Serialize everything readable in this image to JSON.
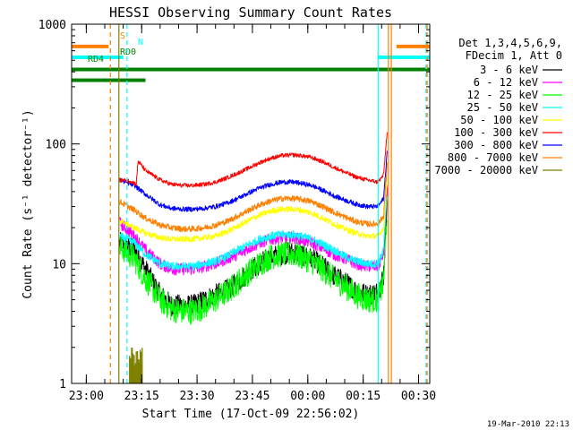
{
  "chart_data": {
    "type": "line",
    "title": "HESSI Observing Summary Count Rates",
    "xlabel": "Start Time (17-Oct-09 22:56:02)",
    "ylabel": "Count Rate (s⁻¹ detector⁻¹)",
    "x_unit": "minutes since 22:56:02",
    "xlim": [
      0,
      97
    ],
    "ylim": [
      1,
      1000
    ],
    "yscale": "log",
    "x_ticks": [
      {
        "t": 3.97,
        "label": "23:00"
      },
      {
        "t": 18.97,
        "label": "23:15"
      },
      {
        "t": 33.97,
        "label": "23:30"
      },
      {
        "t": 48.97,
        "label": "23:45"
      },
      {
        "t": 63.97,
        "label": "00:00"
      },
      {
        "t": 78.97,
        "label": "00:15"
      },
      {
        "t": 93.97,
        "label": "00:30"
      }
    ],
    "y_ticks": [
      {
        "v": 1,
        "label": "1"
      },
      {
        "v": 10,
        "label": "10"
      },
      {
        "v": 100,
        "label": "100"
      },
      {
        "v": 1000,
        "label": "1000"
      }
    ],
    "grid": false,
    "legend": {
      "position": "right",
      "header": [
        "Det 1,3,4,5,6,9,",
        "FDecim 1, Att 0"
      ],
      "items": [
        {
          "label": "3 - 6 keV",
          "color": "#000000"
        },
        {
          "label": "6 - 12 keV",
          "color": "#ff00ff"
        },
        {
          "label": "12 - 25 keV",
          "color": "#00ff00"
        },
        {
          "label": "25 - 50 keV",
          "color": "#00ffff"
        },
        {
          "label": "50 - 100 keV",
          "color": "#ffff00"
        },
        {
          "label": "100 - 300 keV",
          "color": "#ff0000"
        },
        {
          "label": "300 - 800 keV",
          "color": "#0000ff"
        },
        {
          "label": "800 - 7000 keV",
          "color": "#ff8000"
        },
        {
          "label": "7000 - 20000 keV",
          "color": "#808000"
        }
      ]
    },
    "series": [
      {
        "name": "3 - 6 keV",
        "color": "#000000",
        "noise": 0.18,
        "y": [
          [
            13,
            15
          ],
          [
            17,
            13
          ],
          [
            20,
            9
          ],
          [
            24,
            5.5
          ],
          [
            27,
            4.5
          ],
          [
            30,
            4.5
          ],
          [
            33,
            4.5
          ],
          [
            36,
            5
          ],
          [
            39,
            5.5
          ],
          [
            42,
            6
          ],
          [
            45,
            7
          ],
          [
            48,
            8.5
          ],
          [
            51,
            10
          ],
          [
            54,
            11.5
          ],
          [
            57,
            12
          ],
          [
            60,
            12.5
          ],
          [
            62,
            12
          ],
          [
            65,
            11
          ],
          [
            68,
            9.5
          ],
          [
            71,
            8
          ],
          [
            74,
            7
          ],
          [
            77,
            6
          ],
          [
            80,
            5.5
          ],
          [
            83,
            5.8
          ],
          [
            84.5,
            8
          ],
          [
            85.5,
            40
          ]
        ]
      },
      {
        "name": "6 - 12 keV",
        "color": "#ff00ff",
        "noise": 0.1,
        "y": [
          [
            13,
            22
          ],
          [
            17,
            17
          ],
          [
            20,
            13
          ],
          [
            24,
            10
          ],
          [
            27,
            9
          ],
          [
            30,
            9
          ],
          [
            33,
            9
          ],
          [
            36,
            9.5
          ],
          [
            39,
            10
          ],
          [
            42,
            11
          ],
          [
            45,
            12
          ],
          [
            48,
            13.5
          ],
          [
            51,
            15
          ],
          [
            54,
            16
          ],
          [
            57,
            16.5
          ],
          [
            60,
            16.5
          ],
          [
            62,
            16
          ],
          [
            65,
            15
          ],
          [
            68,
            13.5
          ],
          [
            71,
            12
          ],
          [
            74,
            11
          ],
          [
            77,
            10
          ],
          [
            80,
            9.5
          ],
          [
            83,
            9.5
          ],
          [
            84.5,
            12
          ],
          [
            85.5,
            45
          ]
        ]
      },
      {
        "name": "12 - 25 keV",
        "color": "#00ff00",
        "noise": 0.22,
        "y": [
          [
            13,
            14
          ],
          [
            17,
            11
          ],
          [
            20,
            7.5
          ],
          [
            24,
            5
          ],
          [
            27,
            4.2
          ],
          [
            30,
            4
          ],
          [
            33,
            4
          ],
          [
            36,
            4.4
          ],
          [
            39,
            5
          ],
          [
            42,
            5.8
          ],
          [
            45,
            7
          ],
          [
            48,
            8.5
          ],
          [
            51,
            10
          ],
          [
            54,
            11.5
          ],
          [
            57,
            12
          ],
          [
            60,
            12
          ],
          [
            62,
            11.5
          ],
          [
            65,
            10.5
          ],
          [
            68,
            9
          ],
          [
            71,
            7.5
          ],
          [
            74,
            6.5
          ],
          [
            77,
            5.5
          ],
          [
            80,
            5
          ],
          [
            83,
            5
          ],
          [
            84.5,
            7
          ],
          [
            85.5,
            30
          ]
        ]
      },
      {
        "name": "25 - 50 keV",
        "color": "#00ffff",
        "noise": 0.07,
        "y": [
          [
            13,
            17
          ],
          [
            17,
            15
          ],
          [
            20,
            12
          ],
          [
            24,
            10
          ],
          [
            27,
            9.5
          ],
          [
            30,
            9.5
          ],
          [
            33,
            9.5
          ],
          [
            36,
            10
          ],
          [
            39,
            10.5
          ],
          [
            42,
            11.5
          ],
          [
            45,
            13
          ],
          [
            48,
            14.5
          ],
          [
            51,
            16
          ],
          [
            54,
            17
          ],
          [
            57,
            17.5
          ],
          [
            60,
            17.5
          ],
          [
            62,
            17
          ],
          [
            65,
            16
          ],
          [
            68,
            14.5
          ],
          [
            71,
            13
          ],
          [
            74,
            11.5
          ],
          [
            77,
            10.5
          ],
          [
            80,
            10
          ],
          [
            83,
            10
          ],
          [
            84.5,
            13
          ],
          [
            85.5,
            40
          ]
        ]
      },
      {
        "name": "50 - 100 keV",
        "color": "#ffff00",
        "noise": 0.05,
        "y": [
          [
            13,
            23
          ],
          [
            17,
            20
          ],
          [
            20,
            18
          ],
          [
            24,
            16.5
          ],
          [
            27,
            16
          ],
          [
            30,
            16
          ],
          [
            33,
            16
          ],
          [
            36,
            16.5
          ],
          [
            39,
            17
          ],
          [
            42,
            18.5
          ],
          [
            45,
            20.5
          ],
          [
            48,
            23
          ],
          [
            51,
            25.5
          ],
          [
            54,
            27.5
          ],
          [
            57,
            28.5
          ],
          [
            60,
            28.5
          ],
          [
            62,
            28
          ],
          [
            65,
            26.5
          ],
          [
            68,
            24
          ],
          [
            71,
            21.5
          ],
          [
            74,
            19.5
          ],
          [
            77,
            18
          ],
          [
            80,
            17
          ],
          [
            83,
            17
          ],
          [
            84.5,
            20
          ],
          [
            85.5,
            55
          ]
        ]
      },
      {
        "name": "100 - 300 keV",
        "color": "#ff0000",
        "noise": 0.035,
        "y": [
          [
            13,
            50
          ],
          [
            16,
            49
          ],
          [
            17.5,
            46
          ],
          [
            18,
            72
          ],
          [
            20,
            60
          ],
          [
            24,
            50
          ],
          [
            27,
            46
          ],
          [
            30,
            45
          ],
          [
            33,
            45
          ],
          [
            36,
            46
          ],
          [
            39,
            48
          ],
          [
            42,
            52
          ],
          [
            45,
            57
          ],
          [
            48,
            63
          ],
          [
            51,
            70
          ],
          [
            54,
            76
          ],
          [
            57,
            80
          ],
          [
            60,
            81
          ],
          [
            62,
            80
          ],
          [
            65,
            77
          ],
          [
            68,
            71
          ],
          [
            71,
            64
          ],
          [
            74,
            58
          ],
          [
            77,
            53
          ],
          [
            80,
            50
          ],
          [
            83,
            48
          ],
          [
            84.5,
            55
          ],
          [
            85.5,
            130
          ]
        ]
      },
      {
        "name": "300 - 800 keV",
        "color": "#0000ff",
        "noise": 0.04,
        "y": [
          [
            13,
            50
          ],
          [
            17,
            45
          ],
          [
            20,
            38
          ],
          [
            24,
            31
          ],
          [
            27,
            29
          ],
          [
            30,
            28.5
          ],
          [
            33,
            28.5
          ],
          [
            36,
            29
          ],
          [
            39,
            30
          ],
          [
            42,
            32
          ],
          [
            45,
            35
          ],
          [
            48,
            39
          ],
          [
            51,
            43
          ],
          [
            54,
            46
          ],
          [
            57,
            48
          ],
          [
            60,
            48
          ],
          [
            62,
            47
          ],
          [
            65,
            45
          ],
          [
            68,
            41
          ],
          [
            71,
            37
          ],
          [
            74,
            34
          ],
          [
            77,
            31.5
          ],
          [
            80,
            30
          ],
          [
            83,
            30
          ],
          [
            84.5,
            35
          ],
          [
            85.5,
            90
          ]
        ]
      },
      {
        "name": "800 - 7000 keV",
        "color": "#ff8000",
        "noise": 0.05,
        "y": [
          [
            13,
            33
          ],
          [
            17,
            28
          ],
          [
            20,
            24
          ],
          [
            24,
            21
          ],
          [
            27,
            20
          ],
          [
            30,
            19.5
          ],
          [
            33,
            19.5
          ],
          [
            36,
            20
          ],
          [
            39,
            21
          ],
          [
            42,
            22.5
          ],
          [
            45,
            25
          ],
          [
            48,
            28
          ],
          [
            51,
            31
          ],
          [
            54,
            33.5
          ],
          [
            57,
            35
          ],
          [
            60,
            35
          ],
          [
            62,
            34.5
          ],
          [
            65,
            33
          ],
          [
            68,
            30
          ],
          [
            71,
            27
          ],
          [
            74,
            24.5
          ],
          [
            77,
            22.5
          ],
          [
            80,
            21.5
          ],
          [
            83,
            21.5
          ],
          [
            84.5,
            25
          ],
          [
            85.5,
            70
          ]
        ]
      },
      {
        "name": "7000 - 20000 keV",
        "color": "#808000",
        "noise": 0.35,
        "y": [
          [
            16,
            1.9
          ],
          [
            16.6,
            1.6
          ],
          [
            17.2,
            1.9
          ],
          [
            17.8,
            1.5
          ],
          [
            18.4,
            1.9
          ],
          [
            19,
            1.7
          ]
        ]
      }
    ],
    "flag_bars": [
      {
        "label": "S",
        "color": "#ff8000",
        "y_top_frac": 0.062,
        "segments": [
          [
            0,
            10
          ],
          [
            88,
            97
          ]
        ]
      },
      {
        "label": "N",
        "color": "#00ffff",
        "y_top_frac": 0.092,
        "segments": [
          [
            0,
            14
          ],
          [
            83,
            97
          ]
        ]
      },
      {
        "label": "RD0",
        "color": "#008000",
        "y_top_frac": 0.126,
        "segments": [
          [
            0,
            97
          ]
        ]
      },
      {
        "label": "RD4",
        "color": "#008000",
        "y_top_frac": 0.156,
        "segments": [
          [
            0,
            20
          ]
        ]
      }
    ],
    "vlines": [
      {
        "t": 10.5,
        "color": "#ff8000",
        "style": "dashed"
      },
      {
        "t": 15.0,
        "color": "#00ffff",
        "style": "dashed"
      },
      {
        "t": 12.8,
        "color": "#808000",
        "style": "solid"
      },
      {
        "t": 83.0,
        "color": "#00ffff",
        "style": "solid"
      },
      {
        "t": 85.8,
        "color": "#ff8000",
        "style": "solid"
      },
      {
        "t": 86.6,
        "color": "#ff8000",
        "style": "solid"
      },
      {
        "t": 96.0,
        "color": "#00ffff",
        "style": "dashed"
      },
      {
        "t": 96.3,
        "color": "#ff8000",
        "style": "dashed"
      }
    ],
    "footer_text": "19-Mar-2010 22:13"
  }
}
